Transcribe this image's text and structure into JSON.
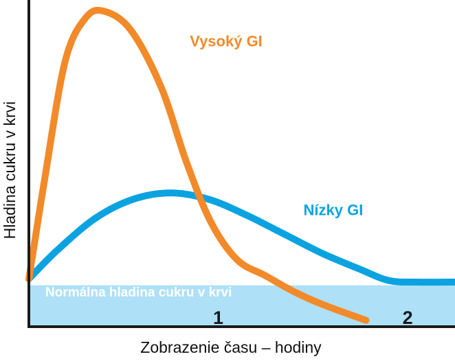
{
  "chart_data": {
    "type": "line",
    "title": "",
    "xlabel": "Zobrazenie času – hodiny",
    "ylabel": "Hladina cukru v krvi",
    "xlim": [
      0,
      2.25
    ],
    "ylim": [
      0,
      100
    ],
    "x_ticks": [
      {
        "value": 1,
        "label": "1"
      },
      {
        "value": 2,
        "label": "2"
      }
    ],
    "band": {
      "label": "Normálna hladina cukru v krvi",
      "y0": 0,
      "y1": 13,
      "color": "#aee0f7"
    },
    "series": [
      {
        "name": "Vysoký GI",
        "color": "#f28a2a",
        "label_at": {
          "x": 0.85,
          "y": 88
        },
        "points": [
          [
            0,
            15
          ],
          [
            0.08,
            45
          ],
          [
            0.19,
            83
          ],
          [
            0.3,
            97
          ],
          [
            0.4,
            99
          ],
          [
            0.54,
            93
          ],
          [
            0.7,
            75
          ],
          [
            0.83,
            52
          ],
          [
            0.96,
            33
          ],
          [
            1.1,
            21
          ],
          [
            1.25,
            16
          ],
          [
            1.4,
            11
          ],
          [
            1.55,
            7
          ],
          [
            1.78,
            2
          ]
        ]
      },
      {
        "name": "Nízky GI",
        "color": "#0aa3e0",
        "label_at": {
          "x": 1.45,
          "y": 35
        },
        "points": [
          [
            0,
            15
          ],
          [
            0.15,
            24
          ],
          [
            0.35,
            34
          ],
          [
            0.55,
            40
          ],
          [
            0.75,
            42
          ],
          [
            0.95,
            40
          ],
          [
            1.15,
            35
          ],
          [
            1.35,
            29
          ],
          [
            1.55,
            23
          ],
          [
            1.75,
            18
          ],
          [
            1.9,
            14.5
          ],
          [
            2.05,
            14
          ],
          [
            2.25,
            14
          ]
        ]
      }
    ]
  },
  "colors": {
    "axis": "#1a1a1a",
    "band": "#aee0f7"
  }
}
